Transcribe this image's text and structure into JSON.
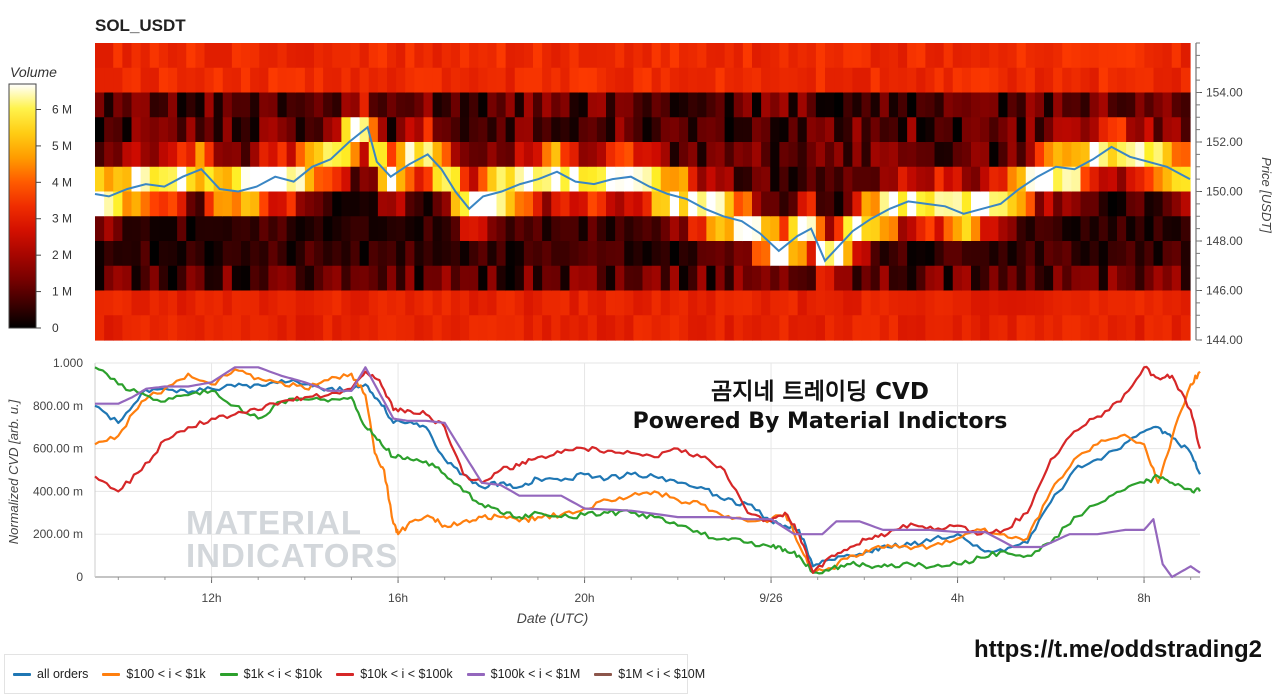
{
  "chart_title": "SOL_USDT",
  "colorbar": {
    "title": "Volume",
    "ticks": [
      {
        "label": "6 M",
        "value": 6
      },
      {
        "label": "5 M",
        "value": 5
      },
      {
        "label": "4 M",
        "value": 4
      },
      {
        "label": "3 M",
        "value": 3
      },
      {
        "label": "2 M",
        "value": 2
      },
      {
        "label": "1 M",
        "value": 1
      },
      {
        "label": "0",
        "value": 0
      }
    ],
    "max": 6.7
  },
  "overlay": {
    "line1": "곰지네 트레이딩 CVD",
    "line2": "Powered By Material Indictors"
  },
  "watermark": {
    "line1": "MATERIAL",
    "line2": "INDICATORS"
  },
  "telegram_url": "https://t.me/oddstrading2",
  "chart_data": [
    {
      "type": "heatmap",
      "title": "SOL_USDT",
      "ylabel": "Price [USDT]",
      "ylim": [
        144,
        156
      ],
      "y_ticks": [
        "144.00",
        "146.00",
        "148.00",
        "150.00",
        "152.00",
        "154.00"
      ],
      "x_range_hours": [
        9.5,
        33.2
      ],
      "price_line": {
        "t": [
          9.5,
          9.8,
          10.2,
          10.6,
          11.0,
          11.4,
          11.8,
          12.2,
          12.6,
          13.0,
          13.4,
          13.8,
          14.2,
          14.6,
          15.0,
          15.4,
          15.6,
          15.9,
          16.3,
          16.7,
          17.0,
          17.3,
          17.6,
          17.9,
          18.3,
          18.7,
          19.1,
          19.5,
          19.9,
          20.3,
          20.7,
          21.1,
          21.5,
          21.9,
          22.3,
          22.7,
          23.1,
          23.5,
          23.9,
          24.3,
          24.7,
          25.0,
          25.3,
          25.6,
          25.9,
          26.3,
          26.7,
          27.1,
          27.5,
          27.9,
          28.3,
          28.7,
          29.1,
          29.5,
          29.9,
          30.3,
          30.7,
          31.1,
          31.5,
          31.9,
          32.3,
          32.7,
          33.0,
          33.2
        ],
        "price": [
          149.9,
          149.8,
          150.1,
          150.3,
          150.2,
          150.6,
          150.9,
          150.1,
          150.0,
          150.2,
          150.6,
          150.4,
          151.0,
          151.3,
          152.0,
          152.6,
          151.2,
          150.6,
          151.1,
          151.5,
          150.9,
          150.0,
          149.3,
          149.8,
          150.0,
          150.3,
          150.5,
          150.8,
          150.4,
          150.3,
          150.5,
          150.6,
          150.2,
          149.9,
          149.7,
          149.3,
          149.0,
          148.8,
          148.3,
          147.6,
          148.2,
          148.5,
          147.2,
          147.8,
          148.4,
          148.9,
          149.3,
          149.6,
          149.5,
          149.4,
          149.1,
          149.3,
          149.5,
          150.1,
          150.6,
          151.0,
          150.9,
          151.3,
          151.8,
          151.4,
          151.2,
          151.0,
          150.7,
          150.5
        ]
      }
    },
    {
      "type": "line",
      "xlabel": "Date (UTC)",
      "ylabel": "Normalized CVD [arb. u.]",
      "ylim": [
        0,
        1
      ],
      "y_ticks": [
        "0",
        "200.00 m",
        "400.00 m",
        "600.00 m",
        "800.00 m",
        "1.000"
      ],
      "x_ticks": [
        "12h",
        "16h",
        "20h",
        "9/26",
        "4h",
        "8h"
      ],
      "x_tick_hours": [
        12,
        16,
        20,
        24,
        28,
        32
      ],
      "series": [
        {
          "name": "all orders",
          "color": "#1f77b4",
          "t": [
            9.5,
            10.0,
            10.5,
            11.0,
            11.5,
            12.0,
            12.5,
            13.0,
            13.5,
            14.0,
            14.5,
            15.0,
            15.3,
            15.6,
            15.9,
            16.2,
            16.6,
            17.0,
            17.4,
            17.8,
            18.2,
            18.6,
            19.0,
            19.5,
            20.0,
            20.5,
            21.0,
            21.5,
            22.0,
            22.5,
            23.0,
            23.5,
            24.0,
            24.3,
            24.6,
            24.9,
            25.3,
            25.7,
            26.1,
            26.5,
            27.0,
            27.5,
            28.0,
            28.5,
            29.0,
            29.5,
            30.0,
            30.5,
            31.0,
            31.5,
            32.0,
            32.3,
            32.6,
            33.0,
            33.2
          ],
          "v": [
            0.8,
            0.72,
            0.86,
            0.88,
            0.86,
            0.88,
            0.89,
            0.9,
            0.92,
            0.9,
            0.88,
            0.87,
            0.9,
            0.82,
            0.72,
            0.72,
            0.7,
            0.55,
            0.48,
            0.42,
            0.44,
            0.42,
            0.46,
            0.45,
            0.48,
            0.46,
            0.48,
            0.47,
            0.44,
            0.42,
            0.36,
            0.34,
            0.26,
            0.24,
            0.22,
            0.05,
            0.08,
            0.1,
            0.12,
            0.14,
            0.15,
            0.18,
            0.2,
            0.13,
            0.12,
            0.16,
            0.35,
            0.5,
            0.55,
            0.6,
            0.68,
            0.7,
            0.65,
            0.58,
            0.48
          ]
        },
        {
          "name": "$100 < i < $1k",
          "color": "#ff7f0e",
          "t": [
            9.5,
            10.0,
            10.5,
            11.0,
            11.5,
            12.0,
            12.5,
            13.0,
            13.5,
            14.0,
            14.5,
            15.0,
            15.3,
            15.5,
            15.7,
            15.9,
            16.0,
            16.3,
            16.7,
            17.0,
            17.4,
            17.8,
            18.2,
            18.6,
            19.0,
            19.5,
            20.0,
            20.5,
            21.0,
            21.5,
            22.0,
            22.5,
            23.0,
            23.5,
            24.0,
            24.3,
            24.6,
            24.9,
            25.3,
            25.7,
            26.1,
            26.5,
            27.0,
            27.5,
            28.0,
            28.5,
            29.0,
            29.5,
            30.0,
            30.5,
            31.0,
            31.5,
            32.0,
            32.3,
            32.6,
            33.0,
            33.2
          ],
          "v": [
            0.62,
            0.66,
            0.82,
            0.88,
            0.95,
            0.9,
            0.97,
            0.93,
            0.91,
            0.88,
            0.92,
            0.95,
            0.85,
            0.58,
            0.5,
            0.25,
            0.2,
            0.26,
            0.28,
            0.24,
            0.26,
            0.28,
            0.28,
            0.26,
            0.28,
            0.29,
            0.32,
            0.36,
            0.38,
            0.4,
            0.36,
            0.34,
            0.28,
            0.26,
            0.27,
            0.3,
            0.15,
            0.02,
            0.04,
            0.1,
            0.12,
            0.15,
            0.13,
            0.15,
            0.18,
            0.22,
            0.2,
            0.18,
            0.4,
            0.55,
            0.62,
            0.66,
            0.62,
            0.44,
            0.65,
            0.9,
            0.96
          ]
        },
        {
          "name": "$1k < i < $10k",
          "color": "#2ca02c",
          "t": [
            9.5,
            10.0,
            10.5,
            11.0,
            11.5,
            12.0,
            12.5,
            13.0,
            13.5,
            14.0,
            14.5,
            15.0,
            15.3,
            15.6,
            15.9,
            16.2,
            16.6,
            17.0,
            17.4,
            17.8,
            18.2,
            18.6,
            19.0,
            19.5,
            20.0,
            20.5,
            21.0,
            21.5,
            22.0,
            22.5,
            23.0,
            23.5,
            24.0,
            24.3,
            24.6,
            24.9,
            25.3,
            25.7,
            26.1,
            26.5,
            27.0,
            27.5,
            28.0,
            28.5,
            29.0,
            29.5,
            30.0,
            30.5,
            31.0,
            31.5,
            32.0,
            32.3,
            32.6,
            33.0,
            33.2
          ],
          "v": [
            0.98,
            0.9,
            0.86,
            0.82,
            0.85,
            0.87,
            0.8,
            0.74,
            0.82,
            0.83,
            0.82,
            0.84,
            0.7,
            0.64,
            0.56,
            0.56,
            0.54,
            0.48,
            0.4,
            0.34,
            0.3,
            0.28,
            0.3,
            0.28,
            0.29,
            0.3,
            0.3,
            0.28,
            0.24,
            0.2,
            0.18,
            0.16,
            0.14,
            0.13,
            0.1,
            0.02,
            0.04,
            0.06,
            0.05,
            0.05,
            0.06,
            0.05,
            0.06,
            0.09,
            0.12,
            0.1,
            0.16,
            0.28,
            0.34,
            0.4,
            0.44,
            0.47,
            0.44,
            0.41,
            0.4
          ]
        },
        {
          "name": "$10k < i < $100k",
          "color": "#d62728",
          "t": [
            9.5,
            10.0,
            10.5,
            11.0,
            11.5,
            12.0,
            12.5,
            13.0,
            13.5,
            14.0,
            14.5,
            15.0,
            15.3,
            15.6,
            15.9,
            16.2,
            16.6,
            17.0,
            17.4,
            17.8,
            18.2,
            18.6,
            19.0,
            19.5,
            20.0,
            20.5,
            21.0,
            21.5,
            22.0,
            22.5,
            23.0,
            23.5,
            24.0,
            24.3,
            24.6,
            24.9,
            25.3,
            25.7,
            26.1,
            26.5,
            27.0,
            27.5,
            28.0,
            28.5,
            29.0,
            29.5,
            30.0,
            30.5,
            31.0,
            31.5,
            32.0,
            32.3,
            32.6,
            33.0,
            33.2
          ],
          "v": [
            0.47,
            0.4,
            0.5,
            0.64,
            0.7,
            0.74,
            0.76,
            0.78,
            0.82,
            0.84,
            0.85,
            0.88,
            0.96,
            0.92,
            0.78,
            0.78,
            0.76,
            0.7,
            0.48,
            0.44,
            0.5,
            0.52,
            0.56,
            0.58,
            0.6,
            0.59,
            0.58,
            0.56,
            0.6,
            0.56,
            0.5,
            0.3,
            0.26,
            0.3,
            0.2,
            0.02,
            0.1,
            0.14,
            0.18,
            0.2,
            0.25,
            0.22,
            0.24,
            0.2,
            0.22,
            0.3,
            0.55,
            0.68,
            0.75,
            0.82,
            0.98,
            0.93,
            0.94,
            0.78,
            0.6
          ]
        },
        {
          "name": "$100k < i < $1M",
          "color": "#9467bd",
          "t": [
            9.5,
            10.0,
            10.3,
            10.6,
            11.0,
            11.5,
            12.0,
            12.5,
            13.0,
            13.5,
            14.0,
            14.5,
            15.0,
            15.3,
            15.6,
            15.9,
            16.2,
            16.6,
            17.0,
            17.4,
            17.8,
            18.2,
            18.6,
            19.0,
            19.5,
            20.0,
            21.0,
            22.0,
            23.0,
            23.5,
            24.0,
            24.5,
            24.8,
            25.1,
            25.4,
            25.9,
            26.4,
            26.9,
            27.4,
            28.0,
            28.6,
            29.2,
            29.8,
            30.4,
            31.0,
            31.6,
            32.0,
            32.2,
            32.4,
            32.6,
            33.0,
            33.2
          ],
          "v": [
            0.81,
            0.81,
            0.84,
            0.88,
            0.89,
            0.89,
            0.91,
            0.98,
            0.98,
            0.94,
            0.91,
            0.87,
            0.87,
            0.98,
            0.86,
            0.74,
            0.73,
            0.73,
            0.72,
            0.58,
            0.44,
            0.43,
            0.38,
            0.38,
            0.38,
            0.32,
            0.31,
            0.28,
            0.28,
            0.27,
            0.27,
            0.2,
            0.2,
            0.2,
            0.26,
            0.26,
            0.22,
            0.22,
            0.22,
            0.21,
            0.21,
            0.14,
            0.14,
            0.2,
            0.2,
            0.22,
            0.22,
            0.27,
            0.06,
            0.0,
            0.05,
            0.02
          ]
        },
        {
          "name": "$1M < i < $10M",
          "color": "#8c564b",
          "t": [],
          "v": []
        }
      ]
    }
  ]
}
